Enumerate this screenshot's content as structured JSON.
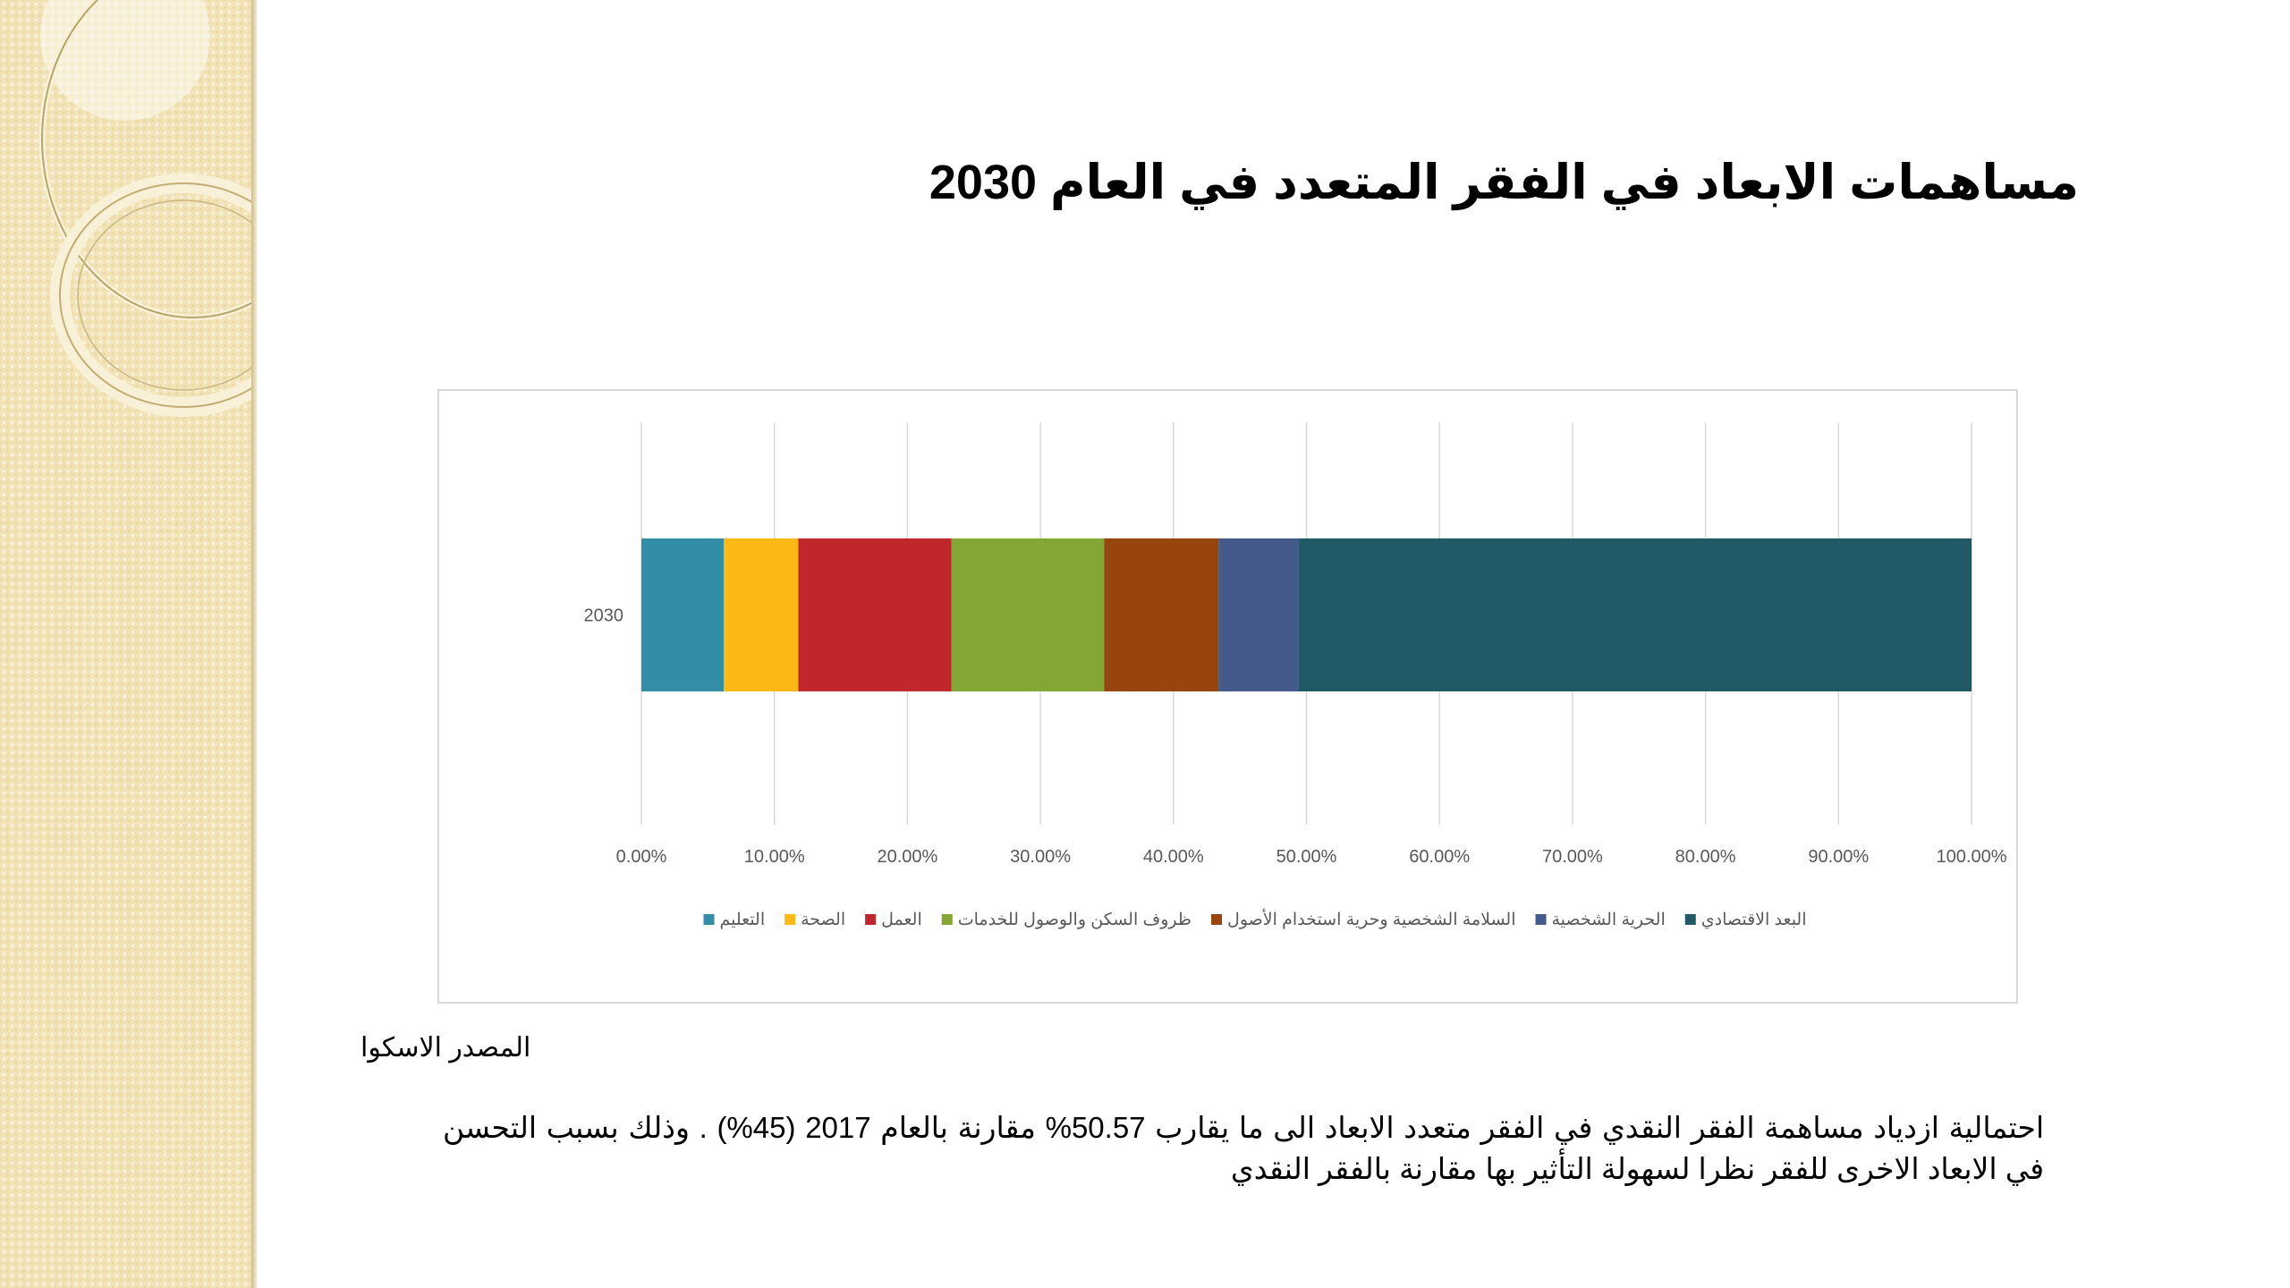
{
  "colors": {
    "panel": "#f2e3b6",
    "grid": "#d9d9d9",
    "axis_text": "#595959"
  },
  "slide": {
    "title": "مساهمات الابعاد في الفقر المتعدد في العام 2030",
    "source": "المصدر الاسكوا",
    "body": "احتمالية ازدياد مساهمة الفقر النقدي في الفقر متعدد الابعاد الى ما يقارب 50.57% مقارنة بالعام 2017 (45%) . وذلك بسبب التحسن في الابعاد الاخرى للفقر نظرا لسهولة التأثير بها مقارنة بالفقر النقدي"
  },
  "chart_data": {
    "type": "bar",
    "orientation": "horizontal",
    "stacked": "100%",
    "categories": [
      "2030"
    ],
    "xlim": [
      0,
      100
    ],
    "x_ticks": [
      "0.00%",
      "10.00%",
      "20.00%",
      "30.00%",
      "40.00%",
      "50.00%",
      "60.00%",
      "70.00%",
      "80.00%",
      "90.00%",
      "100.00%"
    ],
    "grid": true,
    "legend_position": "bottom",
    "series": [
      {
        "name": "التعليم",
        "values": [
          6.2
        ],
        "color": "#348da6"
      },
      {
        "name": "الصحة",
        "values": [
          5.6
        ],
        "color": "#fdb913"
      },
      {
        "name": "العمل",
        "values": [
          11.5
        ],
        "color": "#c0272d"
      },
      {
        "name": "ظروف السكن والوصول للخدمات",
        "values": [
          11.5
        ],
        "color": "#84a637"
      },
      {
        "name": "السلامة الشخصية وحرية استخدام الأصول",
        "values": [
          8.6
        ],
        "color": "#97450c"
      },
      {
        "name": "الحرية الشخصية",
        "values": [
          6.0
        ],
        "color": "#435a8b"
      },
      {
        "name": "البعد الاقتصادي",
        "values": [
          50.6
        ],
        "color": "#225966"
      }
    ]
  }
}
